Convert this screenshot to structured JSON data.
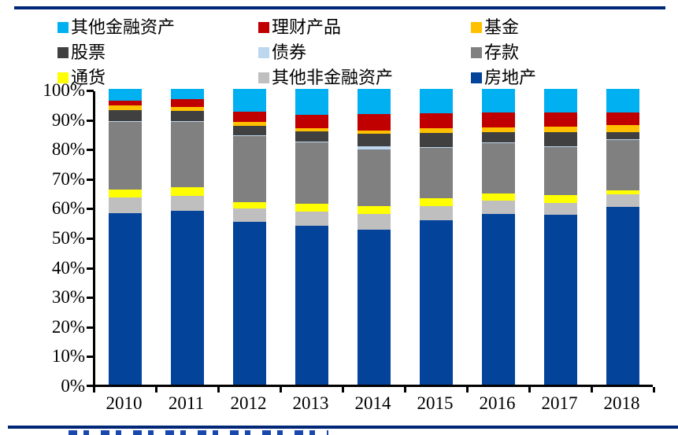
{
  "decor": {
    "top_rule_color": "#002776",
    "bottom_rule_color": "#002776",
    "axis_color": "#000000"
  },
  "chart_data": {
    "type": "bar",
    "stacked": true,
    "percent_stacked": true,
    "grid": false,
    "legend_position": "top",
    "ylim": [
      0,
      100
    ],
    "yticks": [
      "0%",
      "10%",
      "20%",
      "30%",
      "40%",
      "50%",
      "60%",
      "70%",
      "80%",
      "90%",
      "100%"
    ],
    "categories": [
      "2010",
      "2011",
      "2012",
      "2013",
      "2014",
      "2015",
      "2016",
      "2017",
      "2018"
    ],
    "series": [
      {
        "id": "real-estate",
        "name": "房地产",
        "color": "#04439a",
        "values": [
          58.1,
          58.8,
          55.0,
          53.6,
          52.3,
          55.7,
          57.8,
          57.5,
          60.1
        ]
      },
      {
        "id": "other-nonfinancial-assets",
        "name": "其他非金融资产",
        "color": "#bfbfbf",
        "values": [
          5.2,
          5.0,
          4.7,
          4.9,
          5.3,
          4.8,
          4.4,
          3.9,
          4.2
        ]
      },
      {
        "id": "currency",
        "name": "通货",
        "color": "#ffff00",
        "values": [
          2.6,
          3.0,
          2.1,
          2.7,
          2.7,
          2.6,
          2.4,
          2.6,
          1.5
        ]
      },
      {
        "id": "deposits",
        "name": "存款",
        "color": "#808080",
        "values": [
          23.0,
          22.1,
          22.2,
          20.6,
          19.1,
          17.0,
          17.0,
          16.4,
          16.8
        ]
      },
      {
        "id": "bonds",
        "name": "债券",
        "color": "#bdd7ee",
        "values": [
          0.3,
          0.3,
          0.3,
          0.3,
          1.1,
          0.3,
          0.3,
          0.3,
          0.3
        ]
      },
      {
        "id": "stocks",
        "name": "股票",
        "color": "#404040",
        "values": [
          3.7,
          3.3,
          3.3,
          3.5,
          4.3,
          4.7,
          3.6,
          4.6,
          2.6
        ]
      },
      {
        "id": "funds",
        "name": "基金",
        "color": "#ffc000",
        "values": [
          1.4,
          1.4,
          1.2,
          1.0,
          1.1,
          1.6,
          1.6,
          2.0,
          2.3
        ]
      },
      {
        "id": "wealth-management-products",
        "name": "理财产品",
        "color": "#c00000",
        "values": [
          1.8,
          2.6,
          3.5,
          4.6,
          5.5,
          5.1,
          4.9,
          4.7,
          4.2
        ]
      },
      {
        "id": "other-financial-assets",
        "name": "其他金融资产",
        "color": "#00b0f0",
        "values": [
          3.9,
          3.5,
          7.7,
          8.8,
          8.6,
          8.2,
          8.0,
          8.0,
          8.0
        ]
      }
    ],
    "legend_items": [
      {
        "id": "other-financial-assets",
        "label": "其他金融资产",
        "color": "#00b0f0"
      },
      {
        "id": "wealth-management-products",
        "label": "理财产品",
        "color": "#c00000"
      },
      {
        "id": "funds",
        "label": "基金",
        "color": "#ffc000"
      },
      {
        "id": "stocks",
        "label": "股票",
        "color": "#404040"
      },
      {
        "id": "bonds",
        "label": "债券",
        "color": "#bdd7ee"
      },
      {
        "id": "deposits",
        "label": "存款",
        "color": "#808080"
      },
      {
        "id": "currency",
        "label": "通货",
        "color": "#ffff00"
      },
      {
        "id": "other-nonfinancial-assets",
        "label": "其他非金融资产",
        "color": "#bfbfbf"
      },
      {
        "id": "real-estate",
        "label": "房地产",
        "color": "#04439a"
      }
    ]
  }
}
